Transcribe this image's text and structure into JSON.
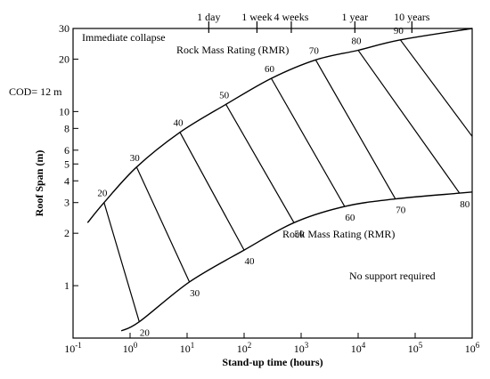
{
  "chart_data": {
    "type": "line",
    "xlabel": "Stand-up time (hours)",
    "ylabel": "Roof Span (m)",
    "x_scale": "log",
    "y_scale": "log",
    "xlim": [
      0.1,
      1000000
    ],
    "ylim": [
      0.5,
      30
    ],
    "grid": false,
    "x_ticks": [
      {
        "value": 0.1,
        "base": "10",
        "exp": "-1"
      },
      {
        "value": 1,
        "base": "10",
        "exp": "0"
      },
      {
        "value": 10,
        "base": "10",
        "exp": "1"
      },
      {
        "value": 100,
        "base": "10",
        "exp": "2"
      },
      {
        "value": 1000,
        "base": "10",
        "exp": "3"
      },
      {
        "value": 10000,
        "base": "10",
        "exp": "4"
      },
      {
        "value": 100000,
        "base": "10",
        "exp": "5"
      },
      {
        "value": 1000000,
        "base": "10",
        "exp": "6"
      }
    ],
    "y_ticks": [
      {
        "value": 1,
        "label": "1"
      },
      {
        "value": 2,
        "label": "2"
      },
      {
        "value": 3,
        "label": "3"
      },
      {
        "value": 4,
        "label": "4"
      },
      {
        "value": 5,
        "label": "5"
      },
      {
        "value": 6,
        "label": "6"
      },
      {
        "value": 8,
        "label": "8"
      },
      {
        "value": 10,
        "label": "10"
      },
      {
        "value": 20,
        "label": "20"
      },
      {
        "value": 30,
        "label": "30"
      }
    ],
    "top_ticks": [
      {
        "hours": 24,
        "label": "1 day"
      },
      {
        "hours": 168,
        "label": "1 week"
      },
      {
        "hours": 672,
        "label": "4 weeks"
      },
      {
        "hours": 8760,
        "label": "1 year"
      },
      {
        "hours": 87600,
        "label": "10 years"
      }
    ],
    "upper_boundary": {
      "name": "Rock Mass Rating (RMR)",
      "x": [
        0.18,
        0.35,
        1.3,
        7.5,
        48,
        300,
        1800,
        10000,
        55000,
        1000000
      ],
      "y": [
        2.3,
        3.0,
        4.8,
        7.6,
        11,
        15.5,
        19.8,
        22.5,
        25.8,
        30
      ]
    },
    "lower_boundary": {
      "name": "Rock Mass Rating (RMR)",
      "x": [
        0.7,
        1.45,
        11,
        100,
        750,
        5800,
        45000,
        600000,
        1000000
      ],
      "y": [
        0.55,
        0.62,
        1.05,
        1.6,
        2.3,
        2.85,
        3.15,
        3.4,
        3.45
      ]
    },
    "rmr_lines": [
      {
        "rmr": 20,
        "top": {
          "x": 0.35,
          "y": 3.0
        },
        "bottom": {
          "x": 1.45,
          "y": 0.62
        }
      },
      {
        "rmr": 30,
        "top": {
          "x": 1.3,
          "y": 4.8
        },
        "bottom": {
          "x": 11,
          "y": 1.05
        }
      },
      {
        "rmr": 40,
        "top": {
          "x": 7.5,
          "y": 7.6
        },
        "bottom": {
          "x": 100,
          "y": 1.6
        }
      },
      {
        "rmr": 50,
        "top": {
          "x": 48,
          "y": 11
        },
        "bottom": {
          "x": 750,
          "y": 2.3
        }
      },
      {
        "rmr": 60,
        "top": {
          "x": 300,
          "y": 15.5
        },
        "bottom": {
          "x": 5800,
          "y": 2.85
        }
      },
      {
        "rmr": 70,
        "top": {
          "x": 1800,
          "y": 19.8
        },
        "bottom": {
          "x": 45000,
          "y": 3.15
        }
      },
      {
        "rmr": 80,
        "top": {
          "x": 10000,
          "y": 22.5
        },
        "bottom": {
          "x": 600000,
          "y": 3.4
        }
      },
      {
        "rmr": 90,
        "top": {
          "x": 55000,
          "y": 25.8
        },
        "bottom": {
          "x": 1000000,
          "y": 7.2
        }
      }
    ],
    "upper_rmr_labels": [
      "20",
      "30",
      "40",
      "50",
      "60",
      "70",
      "80",
      "90"
    ],
    "lower_rmr_labels": [
      "20",
      "30",
      "40",
      "50",
      "60",
      "70",
      "80"
    ],
    "annotations": {
      "immediate_collapse": "Immediate collapse",
      "upper_curve_label": "Rock Mass Rating (RMR)",
      "lower_curve_label": "Rock Mass Rating (RMR)",
      "no_support": "No support required",
      "cod": "COD= 12 m"
    }
  }
}
